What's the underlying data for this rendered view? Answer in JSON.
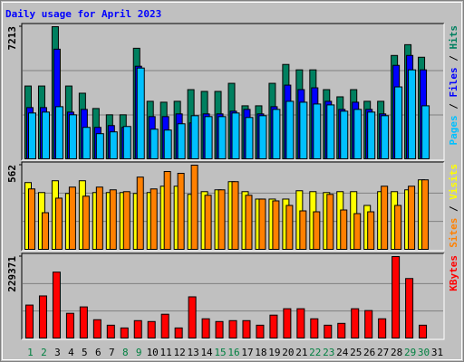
{
  "title": "Daily usage for April 2023",
  "legend_separator": " / ",
  "highlight_color": "#008040",
  "highlight_categories": [
    0,
    1,
    7,
    8,
    14,
    15,
    21,
    22,
    28,
    29
  ],
  "categories": [
    "1",
    "2",
    "3",
    "4",
    "5",
    "6",
    "7",
    "8",
    "9",
    "10",
    "11",
    "12",
    "13",
    "14",
    "15",
    "16",
    "17",
    "18",
    "19",
    "20",
    "21",
    "22",
    "23",
    "24",
    "25",
    "26",
    "27",
    "28",
    "29",
    "30",
    "31"
  ],
  "chart_data": [
    {
      "type": "bar",
      "ylim": [
        0,
        7213
      ],
      "yticks": [
        7213
      ],
      "series": [
        {
          "name": "Hits",
          "color": "#008060",
          "values": [
            3996,
            3996,
            7213,
            3996,
            3607,
            2778,
            2437,
            2437,
            6043,
            3168,
            3119,
            3168,
            3801,
            3704,
            3704,
            4143,
            2924,
            2924,
            4143,
            5166,
            4874,
            4874,
            3801,
            3411,
            3801,
            3168,
            3168,
            5653,
            6238,
            5556,
            0
          ]
        },
        {
          "name": "Files",
          "color": "#0000ff",
          "values": [
            2827,
            2827,
            5994,
            2583,
            2729,
            1755,
            1852,
            1755,
            5069,
            2339,
            2339,
            2486,
            1998,
            2486,
            2486,
            2632,
            2729,
            2486,
            2876,
            4045,
            3802,
            3899,
            3168,
            2729,
            3119,
            2729,
            2486,
            5117,
            5653,
            4874,
            0
          ]
        },
        {
          "name": "Pages",
          "color": "#00c0ff",
          "values": [
            2534,
            2583,
            2876,
            2437,
            1755,
            1413,
            1511,
            1803,
            4971,
            1657,
            1608,
            1950,
            2388,
            2339,
            2339,
            2534,
            2291,
            2388,
            2729,
            3168,
            3119,
            3022,
            2973,
            2632,
            2729,
            2583,
            2388,
            3948,
            4874,
            2924,
            0
          ]
        }
      ]
    },
    {
      "type": "bar",
      "ylim": [
        0,
        562
      ],
      "yticks": [
        562
      ],
      "series": [
        {
          "name": "Visits",
          "color": "#ffff00",
          "values": [
            447,
            381,
            459,
            375,
            459,
            381,
            381,
            381,
            375,
            381,
            423,
            423,
            369,
            387,
            399,
            453,
            387,
            338,
            338,
            338,
            393,
            387,
            381,
            387,
            387,
            296,
            387,
            387,
            399,
            465,
            0
          ]
        },
        {
          "name": "Sites",
          "color": "#ff8000",
          "values": [
            405,
            248,
            344,
            417,
            357,
            417,
            399,
            387,
            483,
            405,
            520,
            508,
            562,
            363,
            399,
            453,
            363,
            338,
            326,
            296,
            260,
            254,
            369,
            266,
            242,
            254,
            423,
            296,
            423,
            465,
            0
          ]
        }
      ]
    },
    {
      "type": "bar",
      "ylim": [
        0,
        229371
      ],
      "yticks": [
        229371
      ],
      "series": [
        {
          "name": "KBytes",
          "color": "#ff0000",
          "values": [
            94298,
            119784,
            186048,
            71360,
            89200,
            53520,
            38229,
            30583,
            50972,
            48423,
            68812,
            30583,
            117235,
            56069,
            48423,
            50972,
            50972,
            38229,
            66263,
            84104,
            84104,
            56069,
            38229,
            43326,
            84104,
            79007,
            56069,
            229371,
            168207,
            38229,
            0
          ]
        }
      ]
    }
  ]
}
